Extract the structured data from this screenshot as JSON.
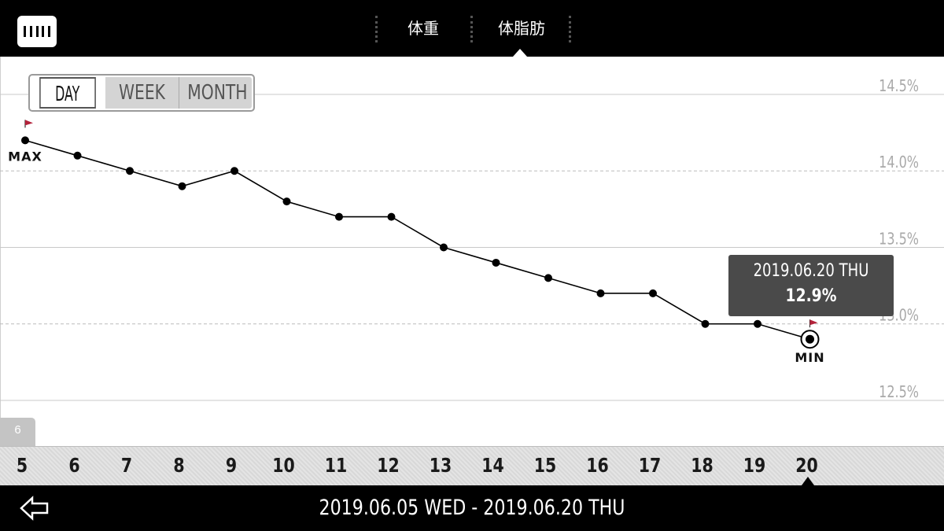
{
  "header": {
    "tabs": [
      {
        "label": "体重",
        "active": false
      },
      {
        "label": "体脂肪",
        "active": true
      }
    ],
    "logo_icon": "scale-logo-icon"
  },
  "period_selector": {
    "options": [
      "DAY",
      "WEEK",
      "MONTH"
    ],
    "selected": "DAY"
  },
  "chart_data": {
    "type": "line",
    "title": "",
    "xlabel": "",
    "ylabel": "",
    "x": [
      5,
      6,
      7,
      8,
      9,
      10,
      11,
      12,
      13,
      14,
      15,
      16,
      17,
      18,
      19,
      20
    ],
    "series": [
      {
        "values": [
          14.2,
          14.1,
          14.0,
          13.9,
          14.0,
          13.8,
          13.7,
          13.7,
          13.5,
          13.4,
          13.3,
          13.2,
          13.2,
          13.0,
          13.0,
          12.9
        ]
      }
    ],
    "ylim": [
      12.5,
      14.5
    ],
    "y_ticks": [
      "14.5%",
      "14.0%",
      "13.5%",
      "13.0%",
      "12.5%"
    ],
    "y_tick_values": [
      14.5,
      14.0,
      13.5,
      13.0,
      12.5
    ],
    "x_tick_labels": [
      "5",
      "6",
      "7",
      "8",
      "9",
      "10",
      "11",
      "12",
      "13",
      "14",
      "15",
      "16",
      "17",
      "18",
      "19",
      "20"
    ],
    "annotations": {
      "max_label": "MAX",
      "min_label": "MIN",
      "max_day": 5,
      "min_day": 20,
      "selected_day": 20
    },
    "grid": true,
    "flag_color": "#b3223a",
    "line_color": "#000000"
  },
  "tooltip": {
    "date": "2019.06.20 THU",
    "value": "12.9%"
  },
  "month_indicator": "6",
  "footer": {
    "date_range": "2019.06.05 WED - 2019.06.20 THU",
    "back_icon": "back-arrow-icon"
  }
}
